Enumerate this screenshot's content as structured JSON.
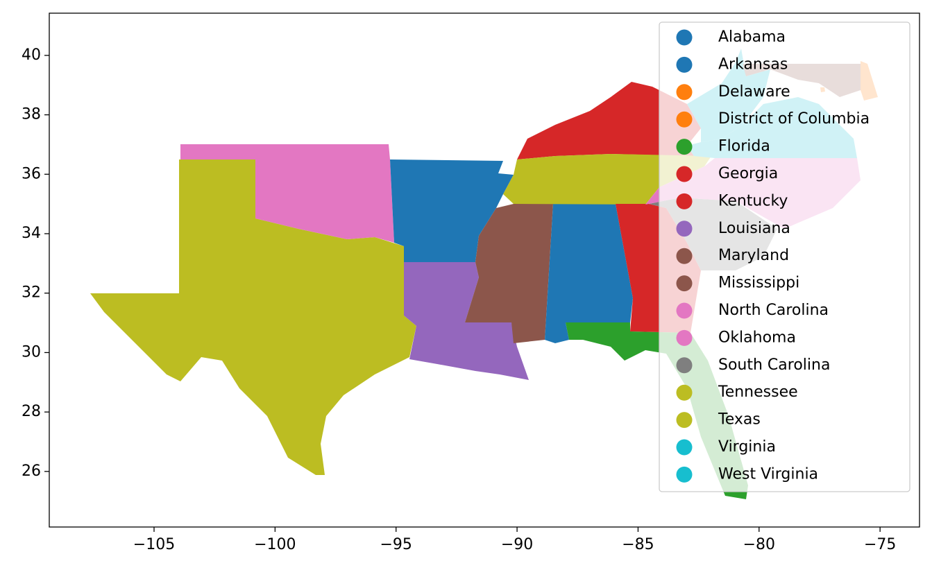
{
  "chart_data": {
    "type": "map",
    "categories": [
      "Alabama",
      "Arkansas",
      "Delaware",
      "District of Columbia",
      "Florida",
      "Georgia",
      "Kentucky",
      "Louisiana",
      "Maryland",
      "Mississippi",
      "North Carolina",
      "Oklahoma",
      "South Carolina",
      "Tennessee",
      "Texas",
      "Virginia",
      "West Virginia"
    ],
    "colors": [
      "#1f77b4",
      "#1f77b4",
      "#ff7f0e",
      "#ff7f0e",
      "#2ca02c",
      "#d62728",
      "#d62728",
      "#9467bd",
      "#8c564b",
      "#8c564b",
      "#e377c2",
      "#e377c2",
      "#7f7f7f",
      "#bcbd22",
      "#bcbd22",
      "#17becf",
      "#17becf"
    ],
    "xlim": [
      -109.33,
      -73.37
    ],
    "ylim": [
      24.13,
      41.42
    ],
    "xticks": [
      {
        "value": -105,
        "label": "−105"
      },
      {
        "value": -100,
        "label": "−100"
      },
      {
        "value": -95,
        "label": "−95"
      },
      {
        "value": -90,
        "label": "−90"
      },
      {
        "value": -85,
        "label": "−85"
      },
      {
        "value": -80,
        "label": "−80"
      },
      {
        "value": -75,
        "label": "−75"
      }
    ],
    "yticks": [
      26,
      28,
      30,
      32,
      34,
      36,
      38,
      40
    ],
    "legend": "upper right"
  }
}
